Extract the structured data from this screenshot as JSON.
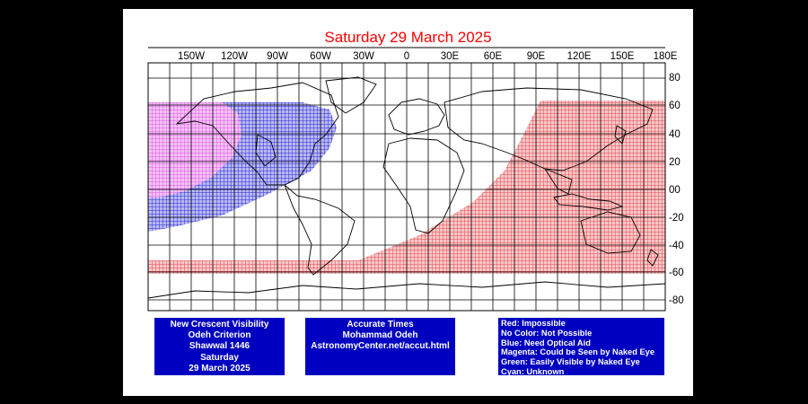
{
  "title": "Saturday 29 March 2025",
  "longitude_labels": [
    "150W",
    "120W",
    "90W",
    "60W",
    "30W",
    "0",
    "30E",
    "60E",
    "90E",
    "120E",
    "150E",
    "180E"
  ],
  "latitude_labels": [
    "80",
    "60",
    "40",
    "20",
    "00",
    "-20",
    "-40",
    "-60",
    "-80"
  ],
  "info_left": [
    "New Crescent Visibility",
    "Odeh Criterion",
    "Shawwal 1446",
    "Saturday",
    "29 March 2025"
  ],
  "info_middle": [
    "Accurate Times",
    "Mohammad Odeh",
    "AstronomyCenter.net/accut.html"
  ],
  "legend": [
    "Red: Impossible",
    "No Color: Not Possible",
    "Blue: Need Optical Aid",
    "Magenta: Could be Seen by Naked Eye",
    "Green: Easily Visible by Naked Eye",
    "Cyan: Unknown"
  ],
  "colors": {
    "background": "#000000",
    "panel": "#ffffff",
    "title": "#ff0000",
    "impossible": "#e8474f",
    "optical_aid": "#2b2bd9",
    "naked_eye": "#e055e6",
    "info_box": "#0000c0"
  },
  "regions": [
    {
      "name": "impossible",
      "label": "Red: Impossible"
    },
    {
      "name": "optical_aid",
      "label": "Blue: Need Optical Aid"
    },
    {
      "name": "naked_eye",
      "label": "Magenta: Could be Seen by Naked Eye"
    }
  ]
}
